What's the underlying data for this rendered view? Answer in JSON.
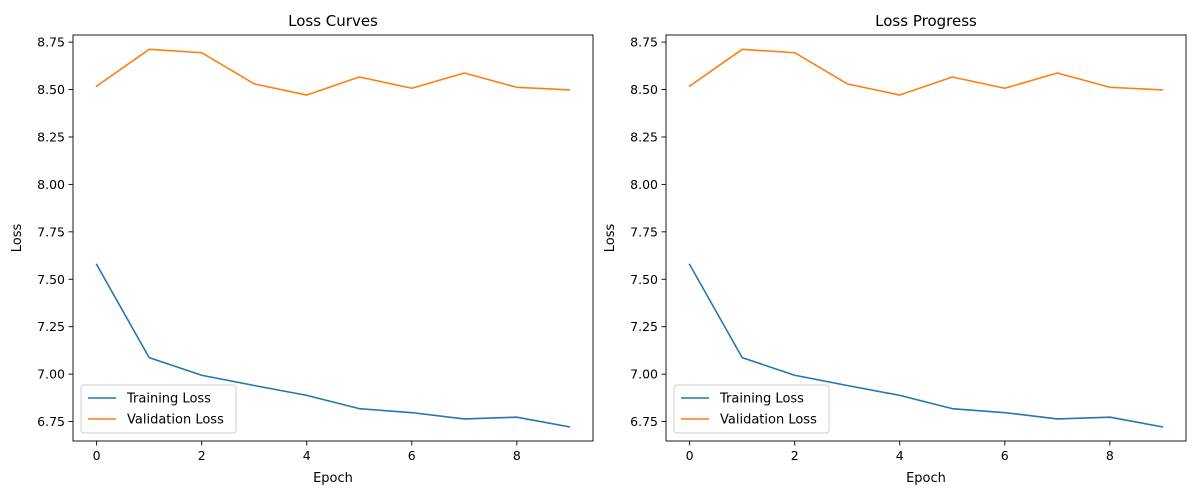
{
  "chart_data": [
    {
      "type": "line",
      "title": "Loss Curves",
      "xlabel": "Epoch",
      "ylabel": "Loss",
      "xlim": [
        -0.45,
        9.45
      ],
      "ylim": [
        6.6475,
        8.7875
      ],
      "x": [
        0,
        1,
        2,
        3,
        4,
        5,
        6,
        7,
        8,
        9
      ],
      "xticks": [
        0,
        2,
        4,
        6,
        8
      ],
      "yticks": [
        6.75,
        7.0,
        7.25,
        7.5,
        7.75,
        8.0,
        8.25,
        8.5,
        8.75
      ],
      "grid": false,
      "legend_position": "lower-left",
      "series": [
        {
          "name": "Training Loss",
          "color": "#1f77b4",
          "values": [
            7.578,
            7.087,
            6.994,
            6.94,
            6.888,
            6.818,
            6.797,
            6.764,
            6.773,
            6.722
          ]
        },
        {
          "name": "Validation Loss",
          "color": "#ff7f0e",
          "values": [
            8.518,
            8.712,
            8.694,
            8.53,
            8.471,
            8.566,
            8.507,
            8.587,
            8.512,
            8.498
          ]
        }
      ]
    },
    {
      "type": "line",
      "title": "Loss Progress",
      "xlabel": "Epoch",
      "ylabel": "Loss",
      "xlim": [
        -0.45,
        9.45
      ],
      "ylim": [
        6.6475,
        8.7875
      ],
      "x": [
        0,
        1,
        2,
        3,
        4,
        5,
        6,
        7,
        8,
        9
      ],
      "xticks": [
        0,
        2,
        4,
        6,
        8
      ],
      "yticks": [
        6.75,
        7.0,
        7.25,
        7.5,
        7.75,
        8.0,
        8.25,
        8.5,
        8.75
      ],
      "grid": false,
      "legend_position": "lower-left",
      "series": [
        {
          "name": "Training Loss",
          "color": "#1f77b4",
          "values": [
            7.578,
            7.087,
            6.994,
            6.94,
            6.888,
            6.818,
            6.797,
            6.764,
            6.773,
            6.722
          ]
        },
        {
          "name": "Validation Loss",
          "color": "#ff7f0e",
          "values": [
            8.518,
            8.712,
            8.694,
            8.53,
            8.471,
            8.566,
            8.507,
            8.587,
            8.512,
            8.498
          ]
        }
      ]
    }
  ]
}
